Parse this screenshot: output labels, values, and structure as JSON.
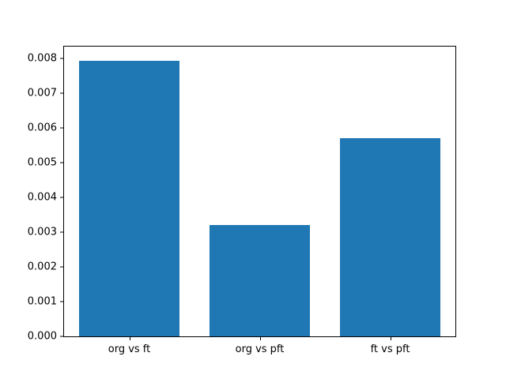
{
  "chart_data": {
    "type": "bar",
    "title": "",
    "xlabel": "",
    "ylabel": "",
    "categories": [
      "org vs ft",
      "org vs pft",
      "ft vs pft"
    ],
    "values": [
      0.00795,
      0.0032,
      0.00572
    ],
    "ylim": [
      0,
      0.00835
    ],
    "yticks": [
      0,
      0.001,
      0.002,
      0.003,
      0.004,
      0.005,
      0.006,
      0.007,
      0.008
    ],
    "ytick_decimals": 3,
    "bar_color": "#1f77b4",
    "grid": false,
    "legend": false,
    "background_color": "#ffffff",
    "axis_color": "#000000"
  }
}
